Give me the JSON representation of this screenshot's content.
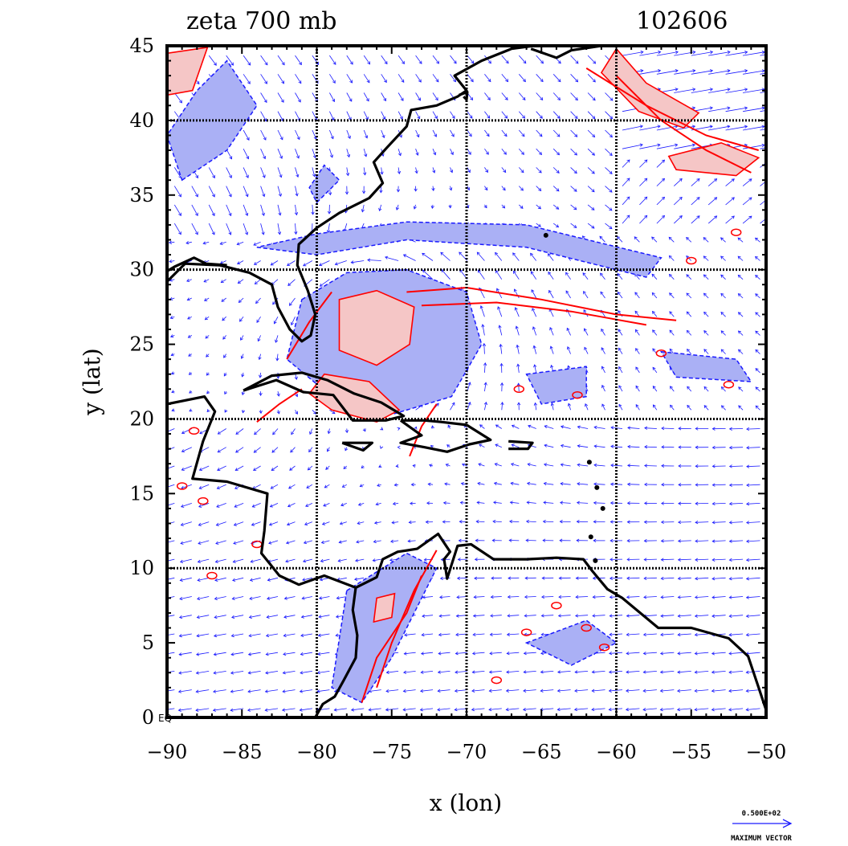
{
  "plot": {
    "title": "zeta 700 mb",
    "date": "102606",
    "xlabel": "x (lon)",
    "ylabel": "y (lat)",
    "eq_label": "EQ",
    "xlim": [
      -90,
      -50
    ],
    "ylim": [
      0,
      45
    ],
    "xticks": [
      -90,
      -85,
      -80,
      -75,
      -70,
      -65,
      -60,
      -55,
      -50
    ],
    "yticks": [
      0,
      5,
      10,
      15,
      20,
      25,
      30,
      35,
      40,
      45
    ],
    "grid_x": [
      -80,
      -70,
      -60
    ],
    "grid_y": [
      10,
      20,
      30,
      40
    ]
  },
  "reference_vector": {
    "value_label": "0.500E+02",
    "caption": "MAXIMUM VECTOR"
  },
  "colors": {
    "coastline": "#000000",
    "positive_contour": "#ff0000",
    "positive_fill": "#f5c6c6",
    "negative_contour": "#1a1aff",
    "negative_fill": "#aab0f5",
    "vectors": "#1a1aff"
  },
  "chart_data": {
    "type": "map",
    "field": "zeta 700 mb",
    "vortex_center": {
      "lon": -75.5,
      "lat": 26
    },
    "notes_visible": [
      "cyclonic vorticity maximum near the Bahamas",
      "wind vectors"
    ]
  }
}
